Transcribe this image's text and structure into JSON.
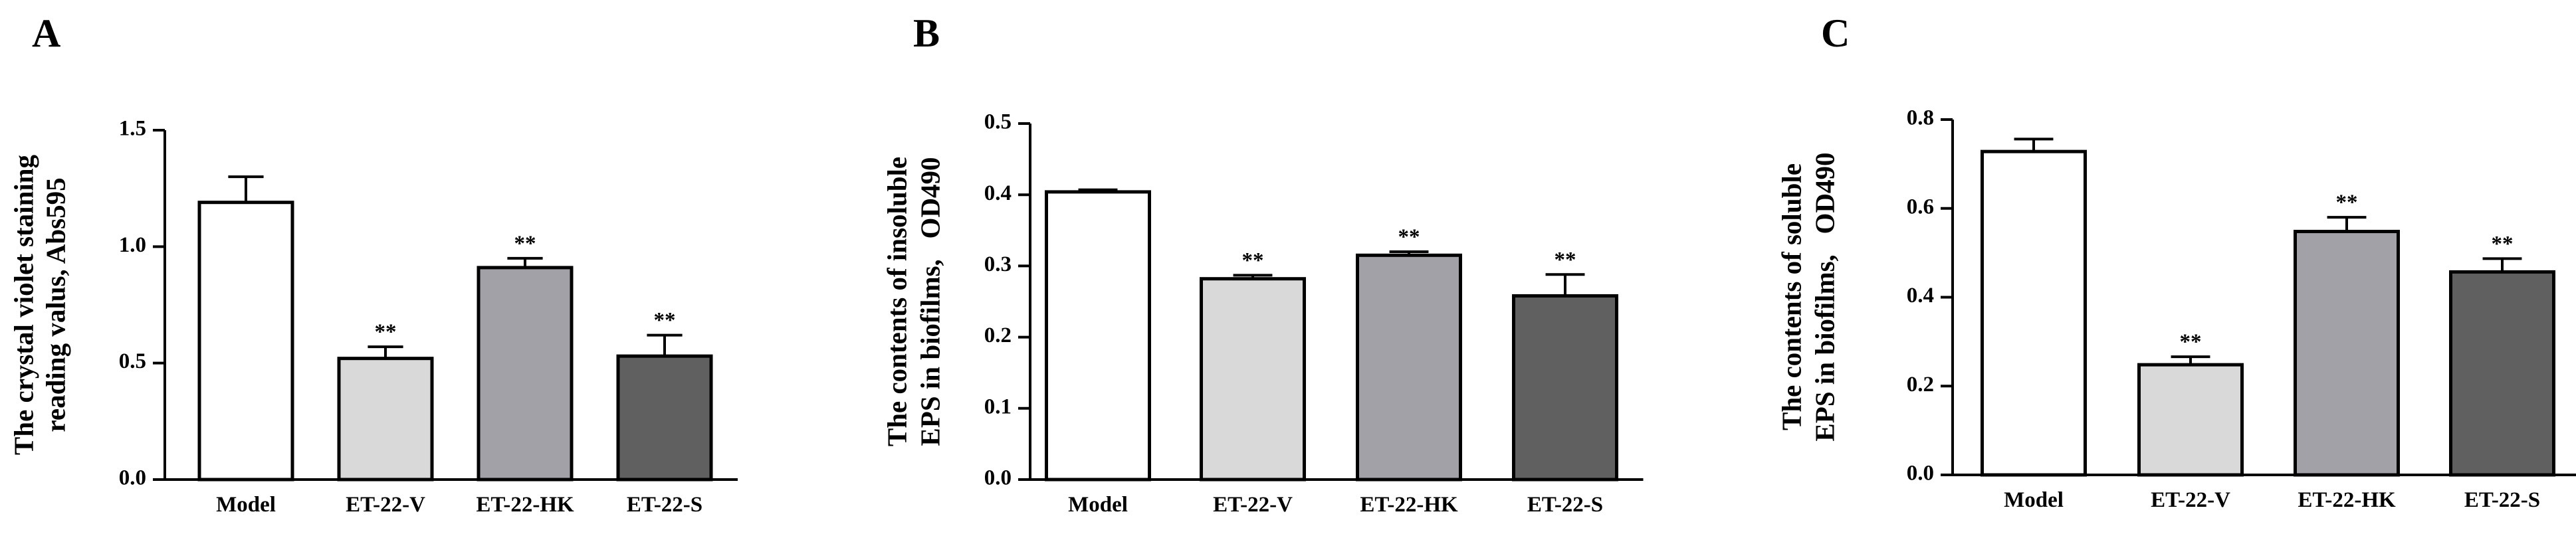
{
  "chart_data": [
    {
      "type": "bar",
      "panel": "A",
      "ylabel_lines": [
        "The crystal violet staining",
        "reading valus, Abs595"
      ],
      "ylim": [
        0,
        1.5
      ],
      "yticks": [
        "0.0",
        "0.5",
        "1.0",
        "1.5"
      ],
      "ytick_values": [
        0,
        0.5,
        1.0,
        1.5
      ],
      "categories": [
        "Model",
        "ET-22-V",
        "ET-22-HK",
        "ET-22-S"
      ],
      "values": [
        1.19,
        0.52,
        0.91,
        0.53
      ],
      "errors": [
        0.11,
        0.05,
        0.04,
        0.09
      ],
      "significance": [
        "",
        "**",
        "**",
        "**"
      ],
      "bar_colors": [
        "#ffffff",
        "#d9d9d9",
        "#a3a1a8",
        "#606060"
      ],
      "grid": false
    },
    {
      "type": "bar",
      "panel": "B",
      "ylabel_lines": [
        "The contents of insoluble",
        "EPS in biofilms,   OD490"
      ],
      "ylim": [
        0,
        0.5
      ],
      "yticks": [
        "0.0",
        "0.1",
        "0.2",
        "0.3",
        "0.4",
        "0.5"
      ],
      "ytick_values": [
        0,
        0.1,
        0.2,
        0.3,
        0.4,
        0.5
      ],
      "categories": [
        "Model",
        "ET-22-V",
        "ET-22-HK",
        "ET-22-S"
      ],
      "values": [
        0.404,
        0.282,
        0.315,
        0.258
      ],
      "errors": [
        0.003,
        0.005,
        0.005,
        0.03
      ],
      "significance": [
        "",
        "**",
        "**",
        "**"
      ],
      "bar_colors": [
        "#ffffff",
        "#d9d9d9",
        "#a3a1a8",
        "#606060"
      ],
      "grid": false
    },
    {
      "type": "bar",
      "panel": "C",
      "ylabel_lines": [
        "The contents of soluble",
        "EPS in biofilms,   OD490"
      ],
      "ylim": [
        0,
        0.8
      ],
      "yticks": [
        "0.0",
        "0.2",
        "0.4",
        "0.6",
        "0.8"
      ],
      "ytick_values": [
        0,
        0.2,
        0.4,
        0.6,
        0.8
      ],
      "categories": [
        "Model",
        "ET-22-V",
        "ET-22-HK",
        "ET-22-S"
      ],
      "values": [
        0.728,
        0.248,
        0.548,
        0.457
      ],
      "errors": [
        0.028,
        0.018,
        0.032,
        0.03
      ],
      "significance": [
        "",
        "**",
        "**",
        "**"
      ],
      "bar_colors": [
        "#ffffff",
        "#d9d9d9",
        "#a3a1a8",
        "#606060"
      ],
      "grid": false
    }
  ]
}
